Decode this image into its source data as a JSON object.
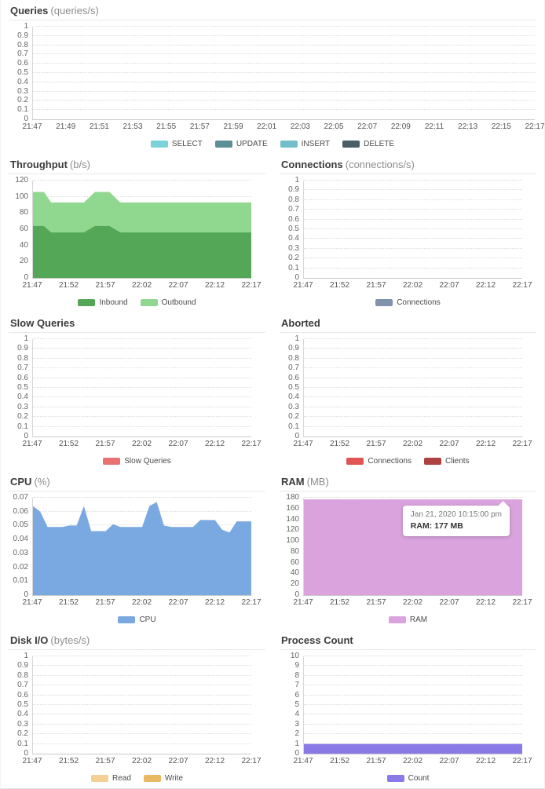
{
  "chart_data": [
    {
      "id": "queries",
      "type": "area",
      "title": "Queries",
      "unit": "(queries/s)",
      "layout": "full",
      "grid": "dotted",
      "legend_position": "bottom",
      "ymax": 1,
      "yticks": [
        "0",
        "0.1",
        "0.2",
        "0.3",
        "0.4",
        "0.5",
        "0.6",
        "0.7",
        "0.8",
        "0.9",
        "1"
      ],
      "xticks": [
        "21:47",
        "21:49",
        "21:51",
        "21:53",
        "21:55",
        "21:57",
        "21:59",
        "22:01",
        "22:03",
        "22:05",
        "22:07",
        "22:09",
        "22:11",
        "22:13",
        "22:15",
        "22:17"
      ],
      "xmax_minutes": 30,
      "series": [
        {
          "name": "SELECT",
          "color": "#7cd2da",
          "points": []
        },
        {
          "name": "UPDATE",
          "color": "#5e8e97",
          "points": []
        },
        {
          "name": "INSERT",
          "color": "#73bec9",
          "points": []
        },
        {
          "name": "DELETE",
          "color": "#485f6a",
          "points": []
        }
      ]
    },
    {
      "id": "throughput",
      "type": "area",
      "title": "Throughput",
      "unit": "(b/s)",
      "layout": "half",
      "grid": "dotted",
      "legend_position": "bottom",
      "stacked": true,
      "ymax": 120,
      "yticks": [
        "0",
        "20",
        "40",
        "60",
        "80",
        "100",
        "120"
      ],
      "xticks": [
        "21:47",
        "21:52",
        "21:57",
        "22:02",
        "22:07",
        "22:12",
        "22:17"
      ],
      "xmax_minutes": 30,
      "series": [
        {
          "name": "Inbound",
          "color": "#54a757",
          "points": [
            [
              0,
              64
            ],
            [
              1.5,
              64
            ],
            [
              2.5,
              56
            ],
            [
              7,
              56
            ],
            [
              8.5,
              64
            ],
            [
              10.5,
              64
            ],
            [
              12,
              56
            ],
            [
              30,
              56
            ]
          ]
        },
        {
          "name": "Outbound",
          "color": "#90d890",
          "note": "points are stack top (Inbound+Outbound)",
          "points": [
            [
              0,
              106
            ],
            [
              1.5,
              106
            ],
            [
              2.5,
              93
            ],
            [
              7,
              93
            ],
            [
              8.5,
              106
            ],
            [
              10.5,
              106
            ],
            [
              12,
              93
            ],
            [
              30,
              93
            ]
          ]
        }
      ]
    },
    {
      "id": "connections",
      "type": "area",
      "title": "Connections",
      "unit": "(connections/s)",
      "layout": "half",
      "grid": "dotted",
      "legend_position": "bottom",
      "ymax": 1,
      "yticks": [
        "0",
        "0.1",
        "0.2",
        "0.3",
        "0.4",
        "0.5",
        "0.6",
        "0.7",
        "0.8",
        "0.9",
        "1"
      ],
      "xticks": [
        "21:47",
        "21:52",
        "21:57",
        "22:02",
        "22:07",
        "22:12",
        "22:17"
      ],
      "xmax_minutes": 30,
      "series": [
        {
          "name": "Connections",
          "color": "#8192ac",
          "points": []
        }
      ]
    },
    {
      "id": "slow-queries",
      "type": "area",
      "title": "Slow Queries",
      "unit": "",
      "layout": "half",
      "grid": "dotted",
      "legend_position": "bottom",
      "ymax": 1,
      "yticks": [
        "0",
        "0.1",
        "0.2",
        "0.3",
        "0.4",
        "0.5",
        "0.6",
        "0.7",
        "0.8",
        "0.9",
        "1"
      ],
      "xticks": [
        "21:47",
        "21:52",
        "21:57",
        "22:02",
        "22:07",
        "22:12",
        "22:17"
      ],
      "xmax_minutes": 30,
      "series": [
        {
          "name": "Slow Queries",
          "color": "#e87272",
          "points": []
        }
      ]
    },
    {
      "id": "aborted",
      "type": "area",
      "title": "Aborted",
      "unit": "",
      "layout": "half",
      "grid": "dotted",
      "legend_position": "bottom",
      "ymax": 1,
      "yticks": [
        "0",
        "0.1",
        "0.2",
        "0.3",
        "0.4",
        "0.5",
        "0.6",
        "0.7",
        "0.8",
        "0.9",
        "1"
      ],
      "xticks": [
        "21:47",
        "21:52",
        "21:57",
        "22:02",
        "22:07",
        "22:12",
        "22:17"
      ],
      "xmax_minutes": 30,
      "series": [
        {
          "name": "Connections",
          "color": "#e15555",
          "points": []
        },
        {
          "name": "Clients",
          "color": "#ae4141",
          "points": []
        }
      ]
    },
    {
      "id": "cpu",
      "type": "area",
      "title": "CPU",
      "unit": "(%)",
      "layout": "half",
      "grid": "dotted",
      "legend_position": "bottom",
      "ymax": 0.07,
      "yticks": [
        "0",
        "0.01",
        "0.02",
        "0.03",
        "0.04",
        "0.05",
        "0.06",
        "0.07"
      ],
      "xticks": [
        "21:47",
        "21:52",
        "21:57",
        "22:02",
        "22:07",
        "22:12",
        "22:17"
      ],
      "xmax_minutes": 30,
      "series": [
        {
          "name": "CPU",
          "color": "#7aa8e1",
          "points": [
            [
              0,
              0.064
            ],
            [
              1,
              0.06
            ],
            [
              2,
              0.049
            ],
            [
              3,
              0.049
            ],
            [
              4,
              0.049
            ],
            [
              5,
              0.05
            ],
            [
              6,
              0.05
            ],
            [
              7,
              0.064
            ],
            [
              8,
              0.046
            ],
            [
              9,
              0.046
            ],
            [
              10,
              0.046
            ],
            [
              11,
              0.051
            ],
            [
              12,
              0.049
            ],
            [
              13,
              0.049
            ],
            [
              14,
              0.049
            ],
            [
              15,
              0.049
            ],
            [
              16,
              0.064
            ],
            [
              17,
              0.067
            ],
            [
              18,
              0.05
            ],
            [
              19,
              0.049
            ],
            [
              20,
              0.049
            ],
            [
              21,
              0.049
            ],
            [
              22,
              0.049
            ],
            [
              23,
              0.054
            ],
            [
              24,
              0.054
            ],
            [
              25,
              0.054
            ],
            [
              26,
              0.047
            ],
            [
              27,
              0.045
            ],
            [
              28,
              0.053
            ],
            [
              29,
              0.053
            ],
            [
              30,
              0.053
            ]
          ]
        }
      ]
    },
    {
      "id": "ram",
      "type": "area",
      "title": "RAM",
      "unit": "(MB)",
      "layout": "half",
      "grid": "dotted",
      "legend_position": "bottom",
      "ymax": 180,
      "yticks": [
        "0",
        "20",
        "40",
        "60",
        "80",
        "100",
        "120",
        "140",
        "160",
        "180"
      ],
      "xticks": [
        "21:47",
        "21:52",
        "21:57",
        "22:02",
        "22:07",
        "22:12",
        "22:17"
      ],
      "xmax_minutes": 30,
      "series": [
        {
          "name": "RAM",
          "color": "#daa3de",
          "points": [
            [
              0,
              177
            ],
            [
              30,
              177
            ]
          ]
        }
      ],
      "tooltip": {
        "timestamp": "Jan 21, 2020 10:15:00 pm",
        "value": "RAM: 177 MB"
      }
    },
    {
      "id": "disk-io",
      "type": "area",
      "title": "Disk I/O",
      "unit": "(bytes/s)",
      "layout": "half",
      "grid": "dotted",
      "legend_position": "bottom",
      "ymax": 1,
      "yticks": [
        "0",
        "0.1",
        "0.2",
        "0.3",
        "0.4",
        "0.5",
        "0.6",
        "0.7",
        "0.8",
        "0.9",
        "1"
      ],
      "xticks": [
        "21:47",
        "21:52",
        "21:57",
        "22:02",
        "22:07",
        "22:12",
        "22:17"
      ],
      "xmax_minutes": 30,
      "series": [
        {
          "name": "Read",
          "color": "#f3d195",
          "points": []
        },
        {
          "name": "Write",
          "color": "#e9b866",
          "points": []
        }
      ]
    },
    {
      "id": "process-count",
      "type": "area",
      "title": "Process Count",
      "unit": "",
      "layout": "half",
      "grid": "dotted",
      "legend_position": "bottom",
      "ymax": 10,
      "yticks": [
        "0",
        "1",
        "2",
        "3",
        "4",
        "5",
        "6",
        "7",
        "8",
        "9",
        "10"
      ],
      "xticks": [
        "21:47",
        "21:52",
        "21:57",
        "22:02",
        "22:07",
        "22:12",
        "22:17"
      ],
      "xmax_minutes": 30,
      "series": [
        {
          "name": "Count",
          "color": "#8a7ae8",
          "points": [
            [
              0,
              1
            ],
            [
              30,
              1
            ]
          ]
        }
      ]
    }
  ]
}
